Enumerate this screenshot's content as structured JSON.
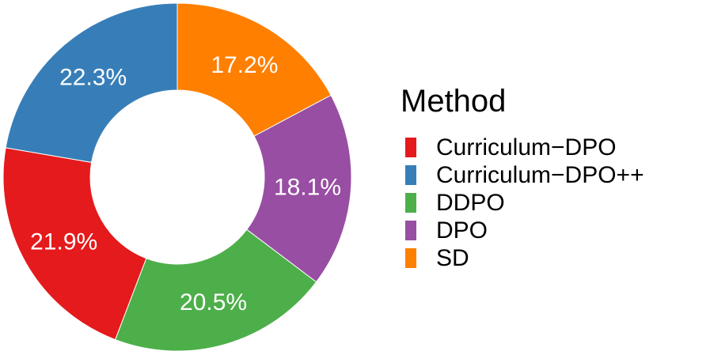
{
  "chart_data": {
    "type": "pie",
    "variant": "donut",
    "legend_title": "Method",
    "legend_position": "right",
    "categories": [
      "Curriculum−DPO",
      "Curriculum−DPO++",
      "DDPO",
      "DPO",
      "SD"
    ],
    "values": [
      21.9,
      22.3,
      20.5,
      18.1,
      17.2
    ],
    "labels": [
      "21.9%",
      "22.3%",
      "20.5%",
      "18.1%",
      "17.2%"
    ],
    "colors": [
      "#e41a1c",
      "#377eb8",
      "#4daf4a",
      "#984ea3",
      "#ff7f00"
    ],
    "draw_order": [
      "SD",
      "DPO",
      "DDPO",
      "Curriculum−DPO",
      "Curriculum−DPO++"
    ]
  }
}
